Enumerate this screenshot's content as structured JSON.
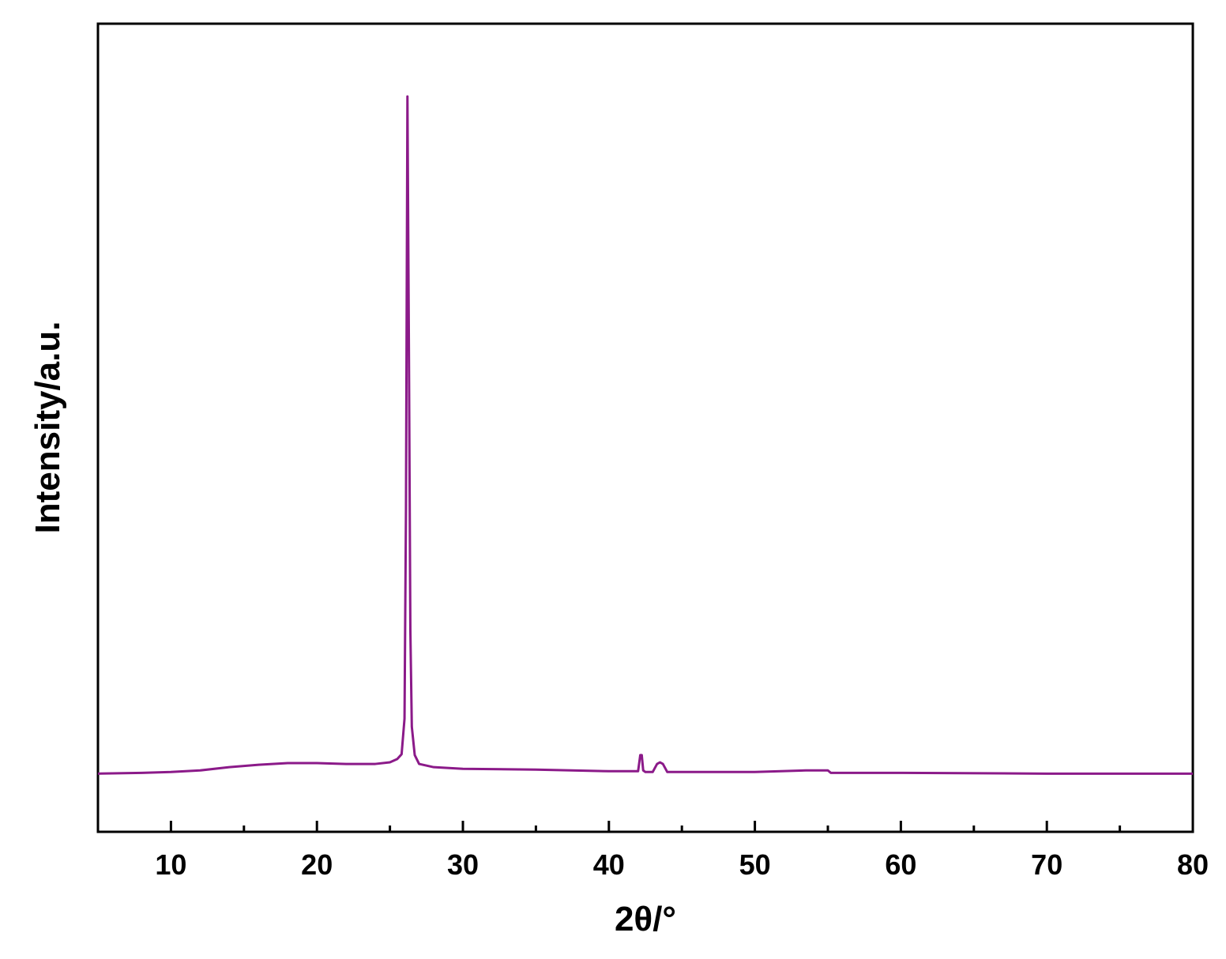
{
  "chart_data": {
    "type": "line",
    "x_label": "2θ/°",
    "y_label": "Intensity/a.u.",
    "xlim": [
      5,
      80
    ],
    "xticks": [
      10,
      20,
      30,
      40,
      50,
      60,
      70,
      80
    ],
    "xminorticks": [
      15,
      25,
      35,
      45,
      55,
      65,
      75
    ],
    "ylim": [
      0,
      1000
    ],
    "series": [
      {
        "color": "#8b1a89",
        "x": [
          5,
          8,
          10,
          12,
          14,
          16,
          18,
          20,
          22,
          24,
          25,
          25.5,
          25.8,
          26.0,
          26.1,
          26.2,
          26.3,
          26.4,
          26.5,
          26.7,
          27,
          28,
          30,
          35,
          40,
          42.0,
          42.15,
          42.25,
          42.35,
          42.5,
          43.0,
          43.3,
          43.5,
          43.7,
          44,
          46,
          50,
          53.5,
          55,
          55.2,
          60,
          70,
          80
        ],
        "values": [
          72,
          73,
          74,
          76,
          80,
          83,
          85,
          85,
          84,
          84,
          86,
          90,
          96,
          140,
          400,
          910,
          600,
          250,
          130,
          95,
          84,
          80,
          78,
          77,
          75,
          75,
          95,
          95,
          76,
          74,
          74,
          84,
          86,
          84,
          74,
          74,
          74,
          76,
          76,
          73,
          73,
          72,
          72
        ]
      }
    ]
  }
}
